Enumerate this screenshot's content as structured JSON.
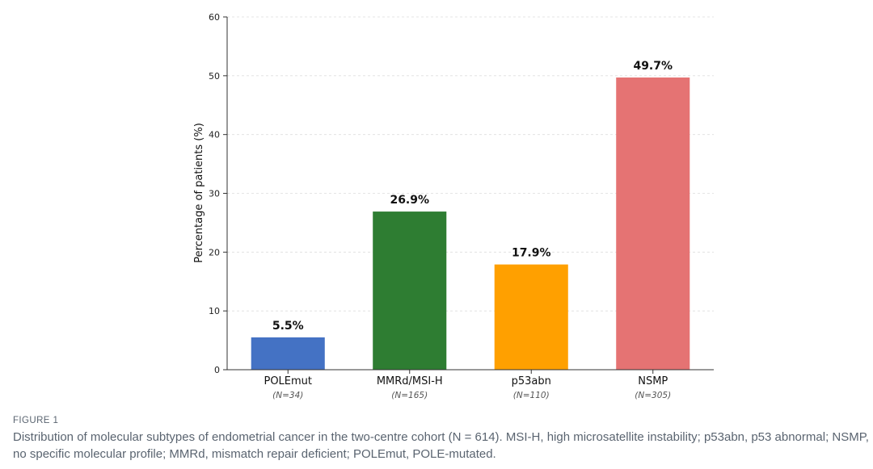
{
  "chart_data": {
    "type": "bar",
    "categories": [
      "POLEmut",
      "MMRd/MSI-H",
      "p53abn",
      "NSMP"
    ],
    "sublabels": [
      "(N=34)",
      "(N=165)",
      "(N=110)",
      "(N=305)"
    ],
    "values": [
      5.5,
      26.9,
      17.9,
      49.7
    ],
    "value_labels": [
      "5.5%",
      "26.9%",
      "17.9%",
      "49.7%"
    ],
    "colors": [
      "#4472c4",
      "#2e7d32",
      "#ffa000",
      "#e57373"
    ],
    "title": "",
    "xlabel": "",
    "ylabel": "Percentage of patients (%)",
    "ylim": [
      0,
      60
    ],
    "yticks": [
      0,
      10,
      20,
      30,
      40,
      50,
      60
    ],
    "grid": "horizontal dashed"
  },
  "caption": {
    "label": "FIGURE 1",
    "text": "Distribution of molecular subtypes of endometrial cancer in the two-centre cohort (N = 614). MSI-H, high microsatellite instability; p53abn, p53 abnormal; NSMP, no specific molecular profile; MMRd, mismatch repair deficient; POLEmut, POLE-mutated."
  }
}
